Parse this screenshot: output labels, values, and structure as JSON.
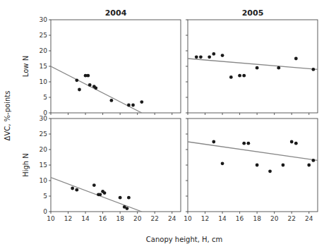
{
  "chart_data": [
    {
      "type": "scatter",
      "title": "2004",
      "ylabel": "Low N",
      "annotations": [
        {
          "text": "ΔVC, %-points"
        }
      ],
      "series": [
        {
          "type": "scatter",
          "color": "#1a1a1a",
          "x": [
            13.0,
            13.3,
            14.0,
            14.3,
            14.5,
            15.0,
            15.2,
            17.0,
            19.0,
            19.5,
            20.5
          ],
          "values": [
            10.5,
            7.5,
            12.0,
            12.0,
            9.0,
            8.5,
            8.0,
            4.0,
            2.5,
            2.5,
            3.5
          ]
        },
        {
          "type": "line",
          "color": "#888888",
          "x": [
            10,
            20.5
          ],
          "values": [
            15.0,
            0.0
          ]
        }
      ],
      "xlim": [
        10,
        25
      ],
      "ylim": [
        0,
        30
      ],
      "xticks": [
        10,
        12,
        14,
        16,
        18,
        20,
        22,
        24
      ],
      "yticks": [
        0,
        5,
        10,
        15,
        20,
        25,
        30
      ],
      "tick_labels": "y"
    },
    {
      "type": "scatter",
      "title": "2005",
      "series": [
        {
          "type": "scatter",
          "color": "#1a1a1a",
          "x": [
            11.0,
            11.5,
            12.5,
            13.0,
            14.0,
            15.0,
            16.0,
            16.5,
            18.0,
            20.5,
            22.5,
            24.5
          ],
          "values": [
            18.0,
            18.0,
            18.0,
            19.0,
            18.5,
            11.5,
            12.0,
            12.0,
            14.5,
            14.5,
            17.5,
            14.0
          ]
        },
        {
          "type": "line",
          "color": "#888888",
          "x": [
            10,
            25
          ],
          "values": [
            17.5,
            14.0
          ]
        }
      ],
      "xlim": [
        10,
        25
      ],
      "ylim": [
        0,
        30
      ],
      "xticks": [
        10,
        12,
        14,
        16,
        18,
        20,
        22,
        24
      ],
      "yticks": [
        0,
        5,
        10,
        15,
        20,
        25,
        30
      ],
      "tick_labels": false
    },
    {
      "type": "scatter",
      "ylabel": "High N",
      "xlabel": "Canopy height, H, cm",
      "series": [
        {
          "type": "scatter",
          "color": "#1a1a1a",
          "x": [
            12.5,
            13.0,
            15.0,
            15.5,
            15.7,
            16.0,
            16.2,
            18.0,
            18.5,
            18.8,
            19.0
          ],
          "values": [
            7.5,
            7.0,
            8.5,
            5.5,
            5.5,
            6.5,
            6.0,
            4.5,
            1.5,
            1.0,
            4.5
          ]
        },
        {
          "type": "line",
          "color": "#888888",
          "x": [
            10,
            20.5
          ],
          "values": [
            11.0,
            0.0
          ]
        }
      ],
      "xlim": [
        10,
        25
      ],
      "ylim": [
        0,
        30
      ],
      "xticks": [
        10,
        12,
        14,
        16,
        18,
        20,
        22,
        24
      ],
      "yticks": [
        0,
        5,
        10,
        15,
        20,
        25,
        30
      ]
    },
    {
      "type": "scatter",
      "series": [
        {
          "type": "scatter",
          "color": "#1a1a1a",
          "x": [
            13.0,
            14.0,
            16.5,
            17.0,
            18.0,
            19.5,
            21.0,
            22.0,
            22.5,
            24.0,
            24.5
          ],
          "values": [
            22.5,
            15.5,
            22.0,
            22.0,
            15.0,
            13.0,
            15.0,
            22.5,
            22.0,
            15.0,
            16.5
          ]
        },
        {
          "type": "line",
          "color": "#888888",
          "x": [
            10,
            25
          ],
          "values": [
            22.5,
            16.5
          ]
        }
      ],
      "xlim": [
        10,
        25
      ],
      "ylim": [
        0,
        30
      ],
      "xticks": [
        10,
        12,
        14,
        16,
        18,
        20,
        22,
        24
      ],
      "yticks": [
        0,
        5,
        10,
        15,
        20,
        25,
        30
      ],
      "tick_labels": "x"
    }
  ]
}
